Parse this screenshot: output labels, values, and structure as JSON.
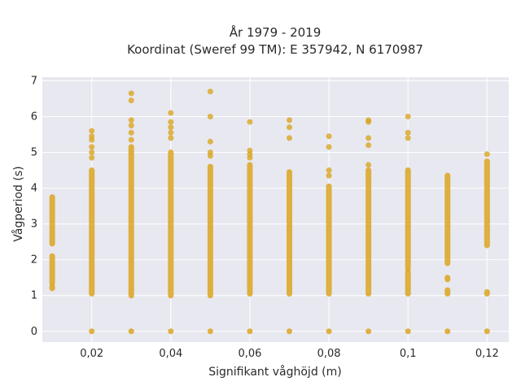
{
  "chart_data": {
    "type": "scatter",
    "title_line1": "År 1979 - 2019",
    "title_line2": "Koordinat (Sweref 99 TM): E 357942, N 6170987",
    "xlabel": "Signifikant våghöjd (m)",
    "ylabel": "Vågperiod (s)",
    "xlim": [
      0.0075,
      0.1255
    ],
    "ylim": [
      -0.3,
      7.1
    ],
    "x_ticks": [
      0.02,
      0.04,
      0.06,
      0.08,
      0.1,
      0.12
    ],
    "x_tick_labels": [
      "0,02",
      "0,04",
      "0,06",
      "0,08",
      "0,1",
      "0,12"
    ],
    "y_ticks": [
      0,
      1,
      2,
      3,
      4,
      5,
      6,
      7
    ],
    "y_tick_labels": [
      "0",
      "1",
      "2",
      "3",
      "4",
      "5",
      "6",
      "7"
    ],
    "grid": true,
    "marker_color": "#DAA520",
    "plot_background": "#E8E8F0",
    "columns": [
      {
        "x": 0.01,
        "segments": [
          [
            1.2,
            1.25
          ],
          [
            1.35,
            2.1
          ],
          [
            2.45,
            3.75
          ]
        ],
        "points": []
      },
      {
        "x": 0.02,
        "segments": [
          [
            0,
            0
          ],
          [
            1.05,
            4.5
          ]
        ],
        "points": [
          4.85,
          5.0,
          5.15,
          5.35,
          5.45,
          5.6
        ]
      },
      {
        "x": 0.03,
        "segments": [
          [
            0,
            0
          ],
          [
            1.0,
            5.15
          ]
        ],
        "points": [
          5.35,
          5.55,
          5.75,
          5.9,
          6.45,
          6.65
        ]
      },
      {
        "x": 0.04,
        "segments": [
          [
            0,
            0
          ],
          [
            1.0,
            5.0
          ]
        ],
        "points": [
          5.4,
          5.55,
          5.7,
          5.85,
          6.1
        ]
      },
      {
        "x": 0.05,
        "segments": [
          [
            0,
            0
          ],
          [
            1.0,
            4.6
          ]
        ],
        "points": [
          4.9,
          5.0,
          5.3,
          6.0,
          6.7
        ]
      },
      {
        "x": 0.06,
        "segments": [
          [
            0,
            0
          ],
          [
            1.05,
            4.65
          ]
        ],
        "points": [
          4.85,
          4.95,
          5.05,
          5.85
        ]
      },
      {
        "x": 0.07,
        "segments": [
          [
            0,
            0
          ],
          [
            1.05,
            4.45
          ]
        ],
        "points": [
          5.4,
          5.7,
          5.9
        ]
      },
      {
        "x": 0.08,
        "segments": [
          [
            0,
            0
          ],
          [
            1.05,
            4.05
          ]
        ],
        "points": [
          4.35,
          4.5,
          5.15,
          5.45
        ]
      },
      {
        "x": 0.09,
        "segments": [
          [
            0,
            0
          ],
          [
            1.05,
            4.5
          ]
        ],
        "points": [
          4.65,
          5.2,
          5.4,
          5.85,
          5.9
        ]
      },
      {
        "x": 0.1,
        "segments": [
          [
            0,
            0
          ],
          [
            1.05,
            1.65
          ],
          [
            1.75,
            4.5
          ]
        ],
        "points": [
          5.4,
          5.55,
          6.0
        ]
      },
      {
        "x": 0.11,
        "segments": [
          [
            0,
            0
          ],
          [
            1.05,
            1.15
          ],
          [
            1.45,
            1.5
          ],
          [
            1.9,
            4.35
          ]
        ],
        "points": []
      },
      {
        "x": 0.12,
        "segments": [
          [
            0,
            0
          ],
          [
            1.05,
            1.1
          ],
          [
            2.4,
            4.75
          ]
        ],
        "points": [
          4.95
        ]
      }
    ]
  }
}
